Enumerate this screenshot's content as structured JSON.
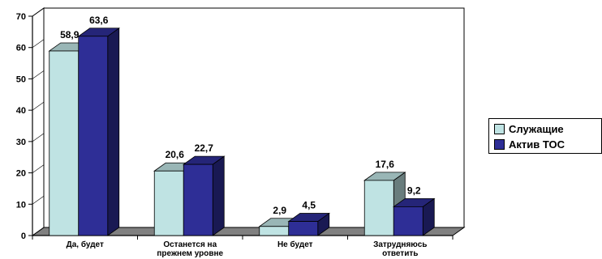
{
  "chart_data": {
    "type": "bar",
    "categories": [
      "Да, будет",
      "Останется на прежнем уровне",
      "Не будет",
      "Затрудняюсь ответить"
    ],
    "series": [
      {
        "name": "Служащие",
        "values": [
          58.9,
          20.6,
          2.9,
          17.6
        ],
        "color": "#bfe3e3"
      },
      {
        "name": "Актив ТОС",
        "values": [
          63.6,
          22.7,
          4.5,
          9.2
        ],
        "color": "#2e2e96"
      }
    ],
    "value_labels": [
      [
        "58,9",
        "20,6",
        "2,9",
        "17,6"
      ],
      [
        "63,6",
        "22,7",
        "4,5",
        "9,2"
      ]
    ],
    "y_ticks": [
      0,
      10,
      20,
      30,
      40,
      50,
      60,
      70
    ],
    "ylim": [
      0,
      70
    ],
    "grid": false,
    "legend": "right",
    "style": "3d"
  }
}
